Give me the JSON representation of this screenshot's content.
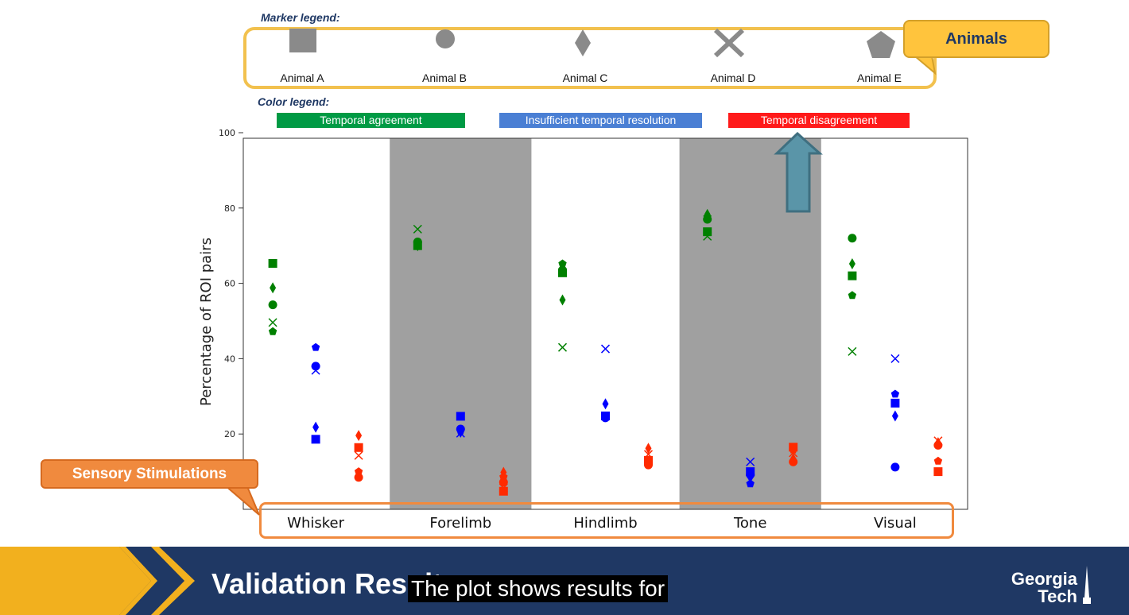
{
  "marker_legend": {
    "heading": "Marker legend:",
    "items": [
      {
        "label": "Animal A",
        "icon": "square-icon"
      },
      {
        "label": "Animal B",
        "icon": "circle-icon"
      },
      {
        "label": "Animal C",
        "icon": "diamond-icon"
      },
      {
        "label": "Animal D",
        "icon": "x-icon"
      },
      {
        "label": "Animal E",
        "icon": "pentagon-icon"
      }
    ]
  },
  "animals_callout": "Animals",
  "color_legend": {
    "heading": "Color legend:",
    "items": [
      {
        "label": "Temporal agreement",
        "color": "#009a44"
      },
      {
        "label": "Insufficient temporal resolution",
        "color": "#4a7fd4"
      },
      {
        "label": "Temporal disagreement",
        "color": "#ff1a1a"
      }
    ]
  },
  "sensory_callout": "Sensory Stimulations",
  "footer": {
    "title": "Validation Results",
    "caption": "The plot shows results for",
    "logo_line1": "Georgia",
    "logo_line2": "Tech"
  },
  "colors": {
    "agreement": "#008000",
    "insufficient": "#0000ff",
    "disagreement": "#ff2a00",
    "shaded_band": "#a0a0a0",
    "footer_bg": "#1f3864",
    "footer_gold": "#f2b01e"
  },
  "chart_data": {
    "type": "scatter",
    "title": "",
    "xlabel": "",
    "ylabel": "Percentage of ROI pairs",
    "ylim": [
      0,
      100
    ],
    "yticks": [
      20,
      40,
      60,
      80,
      100
    ],
    "categories": [
      "Whisker",
      "Forelimb",
      "Hindlimb",
      "Tone",
      "Visual"
    ],
    "shaded_categories": [
      "Forelimb",
      "Tone"
    ],
    "marker_groups": [
      "Animal A",
      "Animal B",
      "Animal C",
      "Animal D",
      "Animal E"
    ],
    "series": [
      {
        "name": "Temporal agreement",
        "values": {
          "Whisker": {
            "Animal A": 65.3,
            "Animal B": 54.3,
            "Animal C": 58.8,
            "Animal D": 49.6,
            "Animal E": 47.2
          },
          "Forelimb": {
            "Animal A": 70.0,
            "Animal B": 71.0,
            "Animal C": 70.0,
            "Animal D": 74.4,
            "Animal E": 70.4
          },
          "Hindlimb": {
            "Animal A": 62.8,
            "Animal B": 63.5,
            "Animal C": 55.6,
            "Animal D": 43.0,
            "Animal E": 65.2
          },
          "Tone": {
            "Animal A": 73.7,
            "Animal B": 77.0,
            "Animal C": 78.3,
            "Animal D": 72.5,
            "Animal E": 77.6
          },
          "Visual": {
            "Animal A": 62.0,
            "Animal B": 72.0,
            "Animal C": 65.2,
            "Animal D": 41.9,
            "Animal E": 56.8
          }
        }
      },
      {
        "name": "Insufficient temporal resolution",
        "values": {
          "Whisker": {
            "Animal A": 18.6,
            "Animal B": 38.0,
            "Animal C": 21.8,
            "Animal D": 36.9,
            "Animal E": 43.0
          },
          "Forelimb": {
            "Animal A": 24.7,
            "Animal B": 21.3,
            "Animal C": 20.5,
            "Animal D": 20.2,
            "Animal E": 20.8
          },
          "Hindlimb": {
            "Animal A": 24.8,
            "Animal B": 24.3,
            "Animal C": 28.0,
            "Animal D": 42.6,
            "Animal E": 24.5
          },
          "Tone": {
            "Animal A": 10.0,
            "Animal B": 9.2,
            "Animal C": 8.5,
            "Animal D": 12.6,
            "Animal E": 6.8
          },
          "Visual": {
            "Animal A": 28.2,
            "Animal B": 11.2,
            "Animal C": 24.8,
            "Animal D": 40.0,
            "Animal E": 30.6
          }
        }
      },
      {
        "name": "Temporal disagreement",
        "values": {
          "Whisker": {
            "Animal A": 16.4,
            "Animal B": 8.5,
            "Animal C": 19.6,
            "Animal D": 14.3,
            "Animal E": 10.0
          },
          "Forelimb": {
            "Animal A": 4.8,
            "Animal B": 7.2,
            "Animal C": 9.8,
            "Animal D": 5.7,
            "Animal E": 8.6
          },
          "Hindlimb": {
            "Animal A": 13.0,
            "Animal B": 11.8,
            "Animal C": 16.2,
            "Animal D": 14.6,
            "Animal E": 12.9
          },
          "Tone": {
            "Animal A": 16.5,
            "Animal B": 12.6,
            "Animal C": 13.4,
            "Animal D": 15.0,
            "Animal E": 15.8
          },
          "Visual": {
            "Animal A": 10.0,
            "Animal B": 17.0,
            "Animal C": 17.7,
            "Animal D": 18.2,
            "Animal E": 12.8
          }
        }
      }
    ]
  }
}
